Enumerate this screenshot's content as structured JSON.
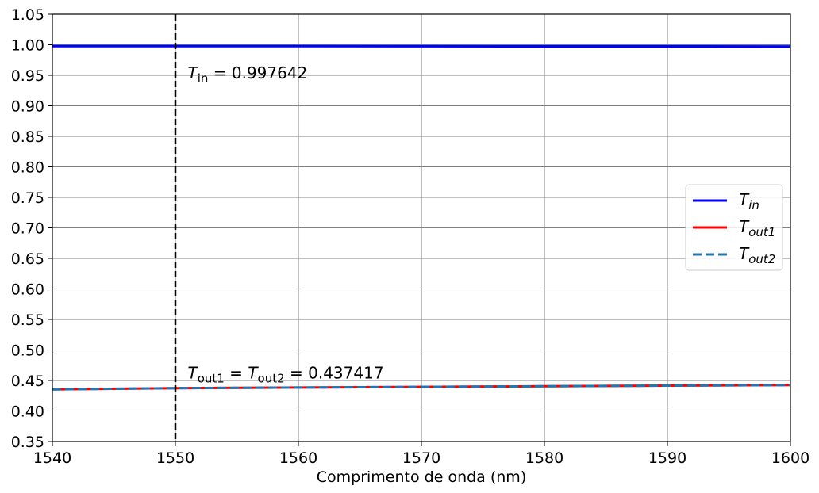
{
  "chart_data": {
    "type": "line",
    "title": "",
    "xlabel": "Comprimento de onda (nm)",
    "ylabel": "",
    "xlim": [
      1540,
      1600
    ],
    "ylim": [
      0.35,
      1.05
    ],
    "xticks": [
      1540,
      1550,
      1560,
      1570,
      1580,
      1590,
      1600
    ],
    "yticks": [
      0.35,
      0.4,
      0.45,
      0.5,
      0.55,
      0.6,
      0.65,
      0.7,
      0.75,
      0.8,
      0.85,
      0.9,
      0.95,
      1.0,
      1.05
    ],
    "xtick_labels": [
      "1540",
      "1550",
      "1560",
      "1570",
      "1580",
      "1590",
      "1600"
    ],
    "ytick_labels": [
      "0.35",
      "0.40",
      "0.45",
      "0.50",
      "0.55",
      "0.60",
      "0.65",
      "0.70",
      "0.75",
      "0.80",
      "0.85",
      "0.90",
      "0.95",
      "1.00",
      "1.05"
    ],
    "grid": true,
    "legend_position": "center-right",
    "series": [
      {
        "name": "T_in",
        "label_main": "T",
        "label_sub": "in",
        "color": "#0000ff",
        "style": "solid",
        "x": [
          1540,
          1550,
          1560,
          1570,
          1580,
          1590,
          1600
        ],
        "y": [
          0.9977,
          0.997642,
          0.9976,
          0.9975,
          0.9974,
          0.9974,
          0.9973
        ]
      },
      {
        "name": "T_out1",
        "label_main": "T",
        "label_sub": "out1",
        "color": "#ff0000",
        "style": "solid",
        "x": [
          1540,
          1550,
          1560,
          1570,
          1580,
          1590,
          1600
        ],
        "y": [
          0.4355,
          0.437417,
          0.4385,
          0.4395,
          0.4405,
          0.4415,
          0.4425
        ]
      },
      {
        "name": "T_out2",
        "label_main": "T",
        "label_sub": "out2",
        "color": "#1f77b4",
        "style": "dashed",
        "x": [
          1540,
          1550,
          1560,
          1570,
          1580,
          1590,
          1600
        ],
        "y": [
          0.4355,
          0.437417,
          0.4385,
          0.4395,
          0.4405,
          0.4415,
          0.4425
        ]
      }
    ],
    "marker_line": {
      "x": 1550,
      "color": "#000000",
      "style": "dashed"
    },
    "annotations": [
      {
        "id": "tin",
        "x": 1551,
        "y": 0.945,
        "parts": [
          {
            "text": "T",
            "kind": "italic"
          },
          {
            "text": "in",
            "kind": "sub"
          },
          {
            "text": " = 0.997642",
            "kind": "normal"
          }
        ]
      },
      {
        "id": "tout",
        "x": 1551,
        "y": 0.453,
        "parts": [
          {
            "text": "T",
            "kind": "italic"
          },
          {
            "text": "out1",
            "kind": "sub"
          },
          {
            "text": " = ",
            "kind": "normal"
          },
          {
            "text": "T",
            "kind": "italic"
          },
          {
            "text": "out2",
            "kind": "sub"
          },
          {
            "text": " = 0.437417",
            "kind": "normal"
          }
        ]
      }
    ]
  }
}
